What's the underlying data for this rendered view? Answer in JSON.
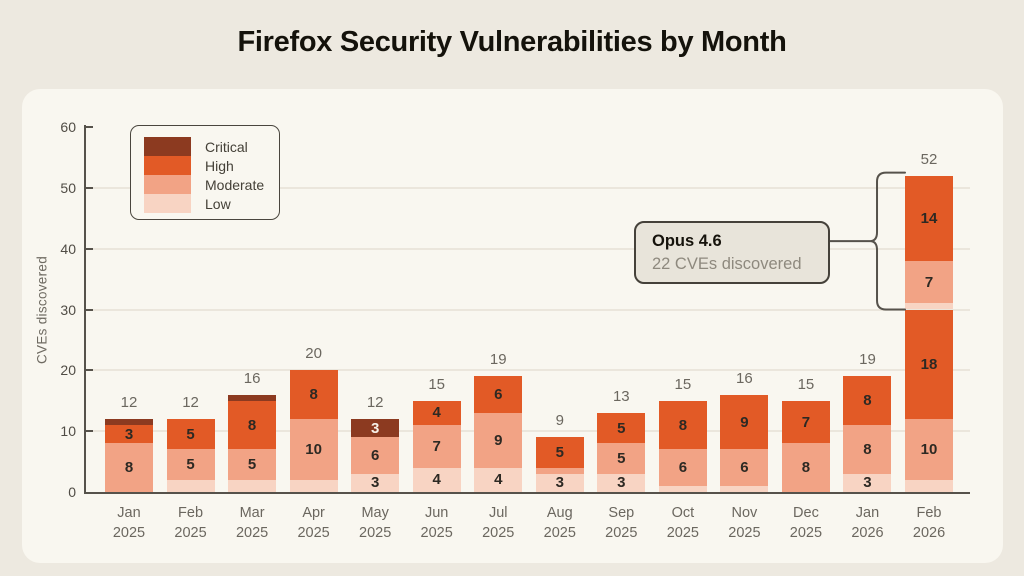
{
  "page": {
    "title": "Firefox Security Vulnerabilities by Month"
  },
  "chart_data": {
    "type": "bar",
    "stacked": true,
    "title": "Firefox Security Vulnerabilities by Month",
    "xlabel": "",
    "ylabel": "CVEs discovered",
    "ylim": [
      0,
      60
    ],
    "yticks": [
      0,
      10,
      20,
      30,
      40,
      50,
      60
    ],
    "gridlines": [
      10,
      20,
      30,
      40,
      50
    ],
    "grid": "horizontal only",
    "legend_position": "top-left, boxed, single column of stacked swatches",
    "min_segment_label": 3,
    "colors": {
      "critical": "#8C3A20",
      "high": "#E25A26",
      "moderate": "#F2A385",
      "low": "#F8D4C3",
      "page_background": "#EDE9E0",
      "card_background": "#F9F7F0",
      "axis": "#56524B",
      "grid_line": "#EBE6DC",
      "label_gray": "#6B675F"
    },
    "legend": [
      {
        "label": "Critical",
        "severity": "critical"
      },
      {
        "label": "High",
        "severity": "high"
      },
      {
        "label": "Moderate",
        "severity": "moderate"
      },
      {
        "label": "Low",
        "severity": "low"
      }
    ],
    "bars": [
      {
        "month": "Jan",
        "year": "2025",
        "total": 12,
        "segments": [
          {
            "severity": "moderate",
            "value": 8
          },
          {
            "severity": "high",
            "value": 3
          },
          {
            "severity": "critical",
            "value": 1
          }
        ]
      },
      {
        "month": "Feb",
        "year": "2025",
        "total": 12,
        "segments": [
          {
            "severity": "low",
            "value": 2
          },
          {
            "severity": "moderate",
            "value": 5
          },
          {
            "severity": "high",
            "value": 5
          }
        ]
      },
      {
        "month": "Mar",
        "year": "2025",
        "total": 16,
        "segments": [
          {
            "severity": "low",
            "value": 2
          },
          {
            "severity": "moderate",
            "value": 5
          },
          {
            "severity": "high",
            "value": 8
          },
          {
            "severity": "critical",
            "value": 1
          }
        ]
      },
      {
        "month": "Apr",
        "year": "2025",
        "total": 20,
        "segments": [
          {
            "severity": "low",
            "value": 2
          },
          {
            "severity": "moderate",
            "value": 10
          },
          {
            "severity": "high",
            "value": 8
          }
        ]
      },
      {
        "month": "May",
        "year": "2025",
        "total": 12,
        "segments": [
          {
            "severity": "low",
            "value": 3
          },
          {
            "severity": "moderate",
            "value": 6
          },
          {
            "severity": "critical",
            "value": 3
          }
        ]
      },
      {
        "month": "Jun",
        "year": "2025",
        "total": 15,
        "segments": [
          {
            "severity": "low",
            "value": 4
          },
          {
            "severity": "moderate",
            "value": 7
          },
          {
            "severity": "high",
            "value": 4
          }
        ]
      },
      {
        "month": "Jul",
        "year": "2025",
        "total": 19,
        "segments": [
          {
            "severity": "low",
            "value": 4
          },
          {
            "severity": "moderate",
            "value": 9
          },
          {
            "severity": "high",
            "value": 6
          }
        ]
      },
      {
        "month": "Aug",
        "year": "2025",
        "total": 9,
        "segments": [
          {
            "severity": "low",
            "value": 3
          },
          {
            "severity": "moderate",
            "value": 1
          },
          {
            "severity": "high",
            "value": 5
          }
        ]
      },
      {
        "month": "Sep",
        "year": "2025",
        "total": 13,
        "segments": [
          {
            "severity": "low",
            "value": 3
          },
          {
            "severity": "moderate",
            "value": 5
          },
          {
            "severity": "high",
            "value": 5
          }
        ]
      },
      {
        "month": "Oct",
        "year": "2025",
        "total": 15,
        "segments": [
          {
            "severity": "low",
            "value": 1
          },
          {
            "severity": "moderate",
            "value": 6
          },
          {
            "severity": "high",
            "value": 8
          }
        ]
      },
      {
        "month": "Nov",
        "year": "2025",
        "total": 16,
        "segments": [
          {
            "severity": "low",
            "value": 1
          },
          {
            "severity": "moderate",
            "value": 6
          },
          {
            "severity": "high",
            "value": 9
          }
        ]
      },
      {
        "month": "Dec",
        "year": "2025",
        "total": 15,
        "segments": [
          {
            "severity": "moderate",
            "value": 8
          },
          {
            "severity": "high",
            "value": 7
          }
        ]
      },
      {
        "month": "Jan",
        "year": "2026",
        "total": 19,
        "segments": [
          {
            "severity": "low",
            "value": 3
          },
          {
            "severity": "moderate",
            "value": 8
          },
          {
            "severity": "high",
            "value": 8
          }
        ]
      },
      {
        "month": "Feb",
        "year": "2026",
        "total": 52,
        "segments": [
          {
            "severity": "low",
            "value": 2
          },
          {
            "severity": "moderate",
            "value": 10
          },
          {
            "severity": "high",
            "value": 18
          },
          {
            "severity": "low",
            "value": 1
          },
          {
            "severity": "moderate",
            "value": 7
          },
          {
            "severity": "high",
            "value": 14
          }
        ]
      }
    ],
    "annotation": {
      "title": "Opus 4.6",
      "subtitle": "22 CVEs discovered",
      "bar_index": 13,
      "value_span": [
        30,
        52
      ]
    }
  }
}
